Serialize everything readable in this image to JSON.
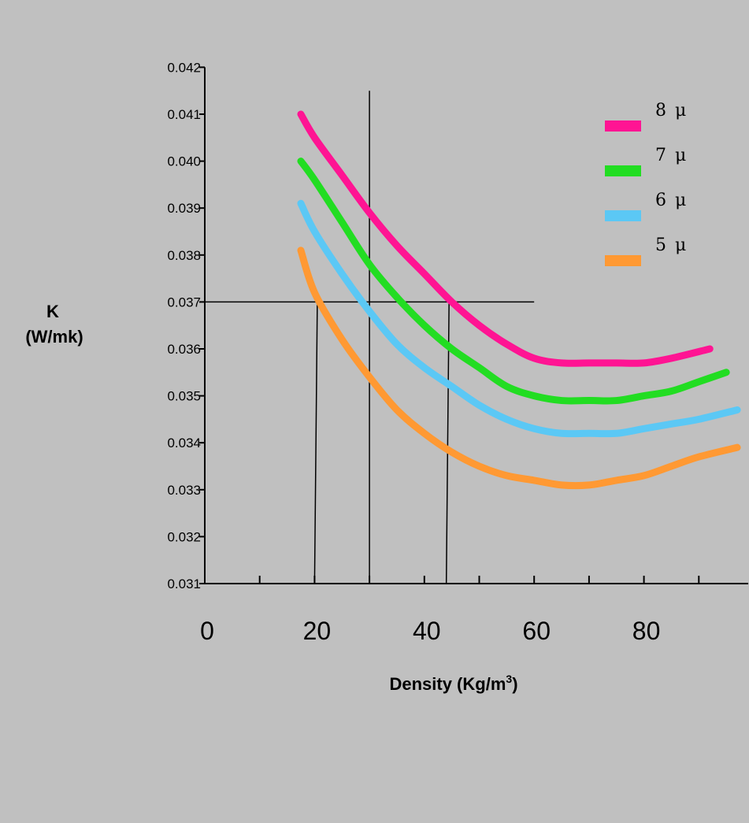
{
  "chart_data": {
    "type": "line",
    "xlabel": "Density (Kg/m",
    "xlabel_superscript": "3",
    "xlabel_close": ")",
    "ylabel_line1": "K",
    "ylabel_line2": "(W/mk)",
    "xlim": [
      0,
      99
    ],
    "ylim": [
      0.031,
      0.042
    ],
    "x_ticks": [
      0,
      20,
      40,
      60,
      80
    ],
    "x_minor_ticks": [
      10,
      30,
      50,
      70,
      90
    ],
    "y_ticks": [
      "0.031",
      "0.032",
      "0.033",
      "0.034",
      "0.035",
      "0.036",
      "0.037",
      "0.038",
      "0.039",
      "0.040",
      "0.041",
      "0.042"
    ],
    "y_tick_values": [
      0.031,
      0.032,
      0.033,
      0.034,
      0.035,
      0.036,
      0.037,
      0.038,
      0.039,
      0.04,
      0.041,
      0.042
    ],
    "legend_position": "top-right",
    "series": [
      {
        "name": "8 μ",
        "color": "#ff1493",
        "x": [
          17.5,
          20,
          25,
          30,
          35,
          40,
          45,
          50,
          55,
          60,
          65,
          70,
          75,
          80,
          85,
          92
        ],
        "y": [
          0.041,
          0.0405,
          0.0397,
          0.0389,
          0.0382,
          0.0376,
          0.037,
          0.0365,
          0.0361,
          0.0358,
          0.0357,
          0.0357,
          0.0357,
          0.0357,
          0.0358,
          0.036
        ]
      },
      {
        "name": "7 μ",
        "color": "#22dd22",
        "x": [
          17.5,
          20,
          25,
          30,
          35,
          40,
          45,
          50,
          55,
          60,
          65,
          70,
          75,
          80,
          85,
          90,
          95
        ],
        "y": [
          0.04,
          0.0396,
          0.0387,
          0.0378,
          0.0371,
          0.0365,
          0.036,
          0.0356,
          0.0352,
          0.035,
          0.0349,
          0.0349,
          0.0349,
          0.035,
          0.0351,
          0.0353,
          0.0355
        ]
      },
      {
        "name": "6 μ",
        "color": "#5bc8f5",
        "x": [
          17.5,
          20,
          25,
          30,
          35,
          40,
          45,
          50,
          55,
          60,
          65,
          70,
          75,
          80,
          85,
          90,
          97
        ],
        "y": [
          0.0391,
          0.0385,
          0.0376,
          0.0368,
          0.0361,
          0.0356,
          0.0352,
          0.0348,
          0.0345,
          0.0343,
          0.0342,
          0.0342,
          0.0342,
          0.0343,
          0.0344,
          0.0345,
          0.0347
        ]
      },
      {
        "name": "5 μ",
        "color": "#ff9933",
        "x": [
          17.5,
          20,
          25,
          30,
          35,
          40,
          45,
          50,
          55,
          60,
          65,
          70,
          75,
          80,
          85,
          90,
          97
        ],
        "y": [
          0.0381,
          0.0372,
          0.0362,
          0.0354,
          0.0347,
          0.0342,
          0.0338,
          0.0335,
          0.0333,
          0.0332,
          0.0331,
          0.0331,
          0.0332,
          0.0333,
          0.0335,
          0.0337,
          0.0339
        ]
      }
    ],
    "reference_lines": {
      "horizontal": [
        {
          "y": 0.037,
          "x_from": 0,
          "x_to": 60
        }
      ],
      "vertical": [
        {
          "x_from": 20,
          "x_to": 20.5,
          "y_from": 0.031,
          "y_to": 0.037
        },
        {
          "x_from": 30,
          "x_to": 30,
          "y_from": 0.031,
          "y_to": 0.0415
        },
        {
          "x_from": 44,
          "x_to": 44.5,
          "y_from": 0.031,
          "y_to": 0.037
        }
      ]
    }
  }
}
